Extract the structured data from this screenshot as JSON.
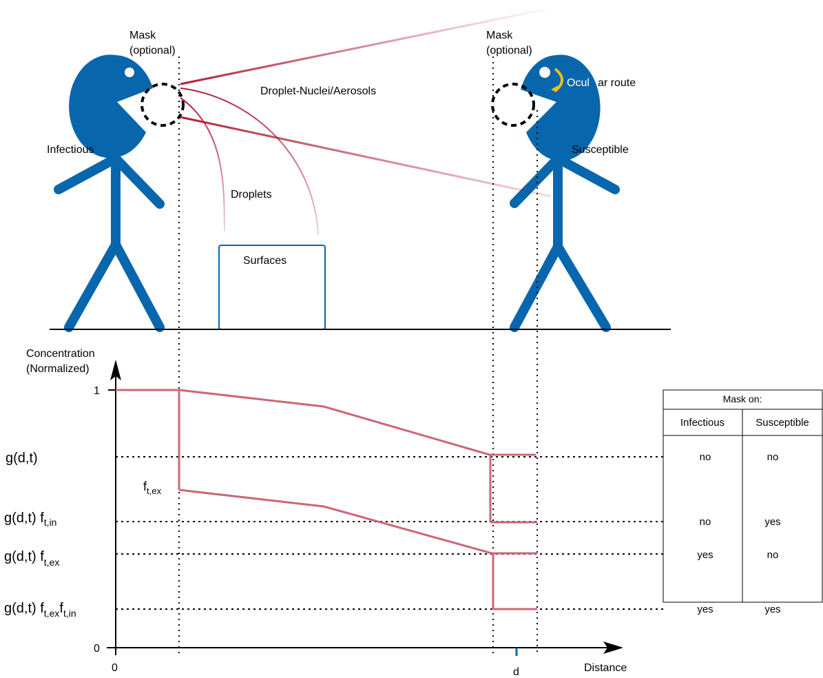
{
  "labels": {
    "mask_left": [
      "Mask",
      "(optional)"
    ],
    "mask_right": [
      "Mask",
      "(optional)"
    ],
    "infectious": "Infectious",
    "susceptible": "Susceptible",
    "droplet_nuclei": "Droplet-Nuclei/Aerosols",
    "droplets": "Droplets",
    "surfaces": "Surfaces",
    "ocular_a": "Ocul",
    "ocular_b": "ar route"
  },
  "axis": {
    "ylabel": [
      "Concentration",
      "(Normalized)"
    ],
    "xlabel": "Distance",
    "y_top_tick": "1",
    "y_zero_tick": "0",
    "x_zero_tick": "0",
    "x_d_tick": "d"
  },
  "levels": {
    "g": "g(d,t)",
    "g_fin": "g(d,t) f",
    "g_fin_sub": "t,in",
    "g_fex": "g(d,t) f",
    "g_fex_sub": "t,ex",
    "g_fexfin": "g(d,t) f",
    "g_fexfin_sub1": "t,ex",
    "g_fexfin_mid": "f",
    "g_fexfin_sub2": "t,in",
    "fex": "f",
    "fex_sub": "t,ex"
  },
  "table": {
    "title": "Mask on:",
    "headers": [
      "Infectious",
      "Susceptible"
    ],
    "rows": [
      [
        "no",
        "no"
      ],
      [
        "no",
        "yes"
      ],
      [
        "yes",
        "no"
      ],
      [
        "yes",
        "yes"
      ]
    ]
  },
  "colors": {
    "person": "#0866ad",
    "curve": "#cc6677",
    "spray": "#b01f35",
    "ocular_arrow": "#f4c20d"
  }
}
